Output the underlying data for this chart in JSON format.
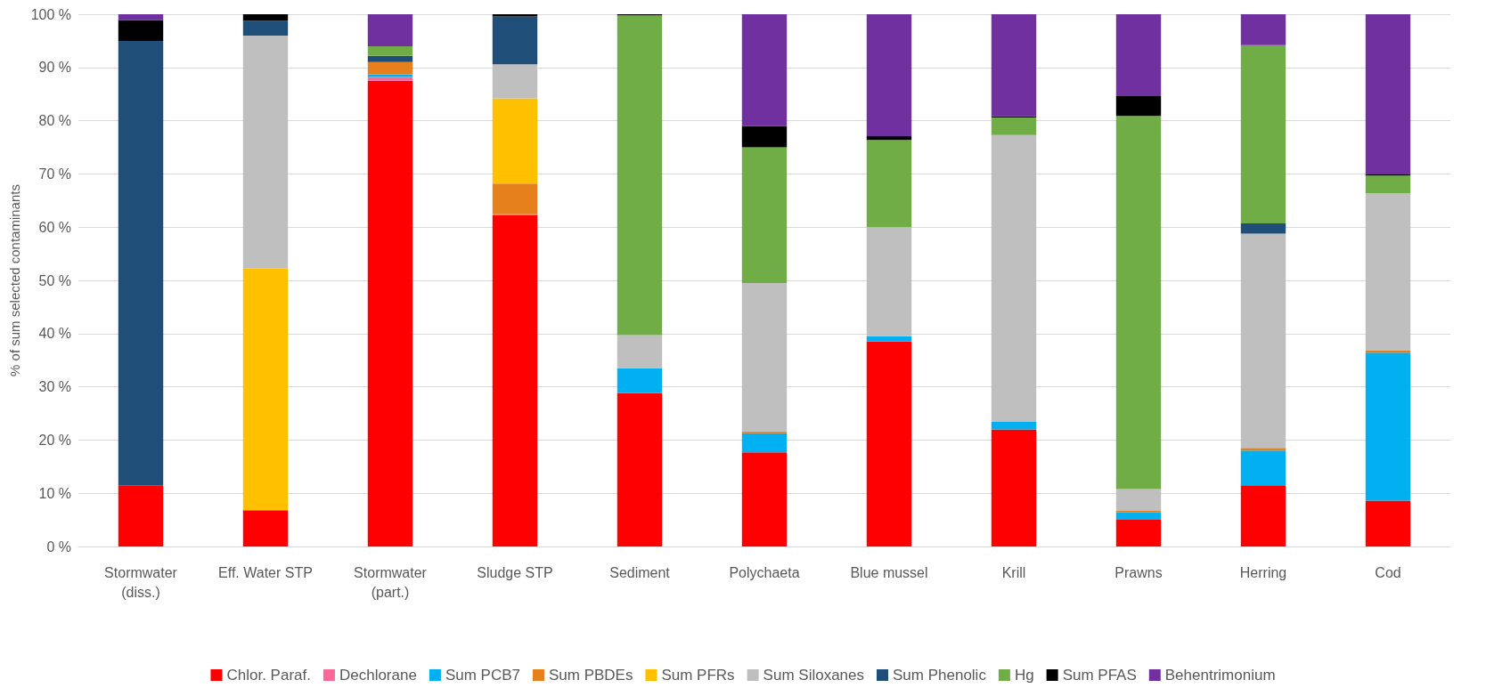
{
  "chart_data": {
    "type": "bar",
    "stacked": true,
    "ylabel": "% of sum selected contaminants",
    "categories": [
      "Stormwater\n(diss.)",
      "Eff. Water STP",
      "Stormwater\n(part.)",
      "Sludge STP",
      "Sediment",
      "Polychaeta",
      "Blue mussel",
      "Krill",
      "Prawns",
      "Herring",
      "Cod"
    ],
    "ylim": [
      0,
      100
    ],
    "yticks": [
      {
        "value": 0,
        "label": "0 %"
      },
      {
        "value": 10,
        "label": "10 %"
      },
      {
        "value": 20,
        "label": "20 %"
      },
      {
        "value": 30,
        "label": "30 %"
      },
      {
        "value": 40,
        "label": "40 %"
      },
      {
        "value": 50,
        "label": "50 %"
      },
      {
        "value": 60,
        "label": "60 %"
      },
      {
        "value": 70,
        "label": "70 %"
      },
      {
        "value": 80,
        "label": "80 %"
      },
      {
        "value": 90,
        "label": "90 %"
      },
      {
        "value": 100,
        "label": "100 %"
      }
    ],
    "grid": "y",
    "legend": "bottom",
    "series": [
      {
        "name": "Chlor. Paraf.",
        "color": "#ff0000",
        "values": [
          11.5,
          6.8,
          87.5,
          62.2,
          28.8,
          17.7,
          38.5,
          22,
          5,
          11.5,
          8.6
        ]
      },
      {
        "name": "Dechlorane",
        "color": "#ff6699",
        "values": [
          0,
          0,
          0.7,
          0.2,
          0,
          0,
          0,
          0,
          0,
          0,
          0
        ]
      },
      {
        "name": "Sum PCB7",
        "color": "#00b0f0",
        "values": [
          0,
          0,
          0.5,
          0,
          4.7,
          3.6,
          1,
          1.4,
          1.4,
          6.5,
          27.8
        ]
      },
      {
        "name": "Sum PBDEs",
        "color": "#e6801c",
        "values": [
          0,
          0,
          2.3,
          5.8,
          0,
          0.3,
          0,
          0,
          0.3,
          0.5,
          0.4
        ]
      },
      {
        "name": "Sum PFRs",
        "color": "#ffc000",
        "values": [
          0,
          45.4,
          0,
          16,
          0,
          0,
          0,
          0,
          0,
          0,
          0
        ]
      },
      {
        "name": "Sum Siloxanes",
        "color": "#bfbfbf",
        "values": [
          0,
          43.8,
          0,
          6.4,
          6.2,
          27.9,
          20.5,
          53.9,
          4.1,
          40.3,
          29.6
        ]
      },
      {
        "name": "Sum Phenolic",
        "color": "#1f4e79",
        "values": [
          83.5,
          2.8,
          1.2,
          9,
          0,
          0,
          0,
          0,
          0,
          1.9,
          0
        ]
      },
      {
        "name": "Hg",
        "color": "#70ad47",
        "values": [
          0,
          0,
          1.8,
          0,
          60.1,
          25.5,
          16.4,
          3.3,
          70.1,
          33.5,
          3.3
        ]
      },
      {
        "name": "Sum PFAS",
        "color": "#000000",
        "values": [
          3.9,
          1.2,
          0,
          0.4,
          0.2,
          4,
          0.7,
          0.2,
          3.7,
          0,
          0.2
        ]
      },
      {
        "name": "Behentrimonium",
        "color": "#7030a0",
        "values": [
          1.1,
          0,
          6,
          0,
          0,
          21,
          22.9,
          19.2,
          15.4,
          5.8,
          30.1
        ]
      }
    ]
  }
}
